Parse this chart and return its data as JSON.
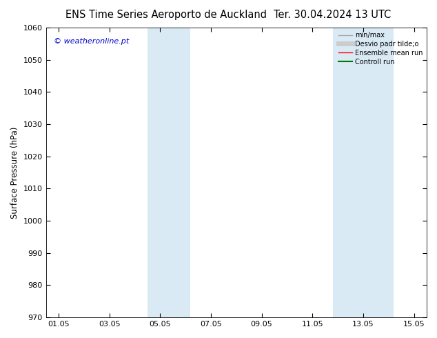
{
  "title_left": "ENS Time Series Aeroporto de Auckland",
  "title_right": "Ter. 30.04.2024 13 UTC",
  "ylabel": "Surface Pressure (hPa)",
  "watermark": "© weatheronline.pt",
  "watermark_color": "#0000cc",
  "ylim": [
    970,
    1060
  ],
  "yticks": [
    970,
    980,
    990,
    1000,
    1010,
    1020,
    1030,
    1040,
    1050,
    1060
  ],
  "xtick_labels": [
    "01.05",
    "03.05",
    "05.05",
    "07.05",
    "09.05",
    "11.05",
    "13.05",
    "15.05"
  ],
  "xtick_positions": [
    0,
    2,
    4,
    6,
    8,
    10,
    12,
    14
  ],
  "xlim": [
    -0.5,
    14.5
  ],
  "background_color": "#ffffff",
  "plot_bg_color": "#ffffff",
  "shade_bands": [
    {
      "xmin": 3.5,
      "xmax": 5.2,
      "color": "#daeaf5"
    },
    {
      "xmin": 10.8,
      "xmax": 13.2,
      "color": "#daeaf5"
    }
  ],
  "legend_entries": [
    {
      "label": "min/max",
      "color": "#aaaaaa",
      "lw": 1.0,
      "ls": "-",
      "type": "line"
    },
    {
      "label": "Desvio padr tilde;o",
      "color": "#cccccc",
      "lw": 5,
      "ls": "-",
      "type": "line"
    },
    {
      "label": "Ensemble mean run",
      "color": "#ff0000",
      "lw": 1.0,
      "ls": "-",
      "type": "line"
    },
    {
      "label": "Controll run",
      "color": "#007700",
      "lw": 1.5,
      "ls": "-",
      "type": "line"
    }
  ],
  "title_fontsize": 10.5,
  "axis_label_fontsize": 8.5,
  "tick_fontsize": 8,
  "legend_fontsize": 7,
  "watermark_fontsize": 8
}
